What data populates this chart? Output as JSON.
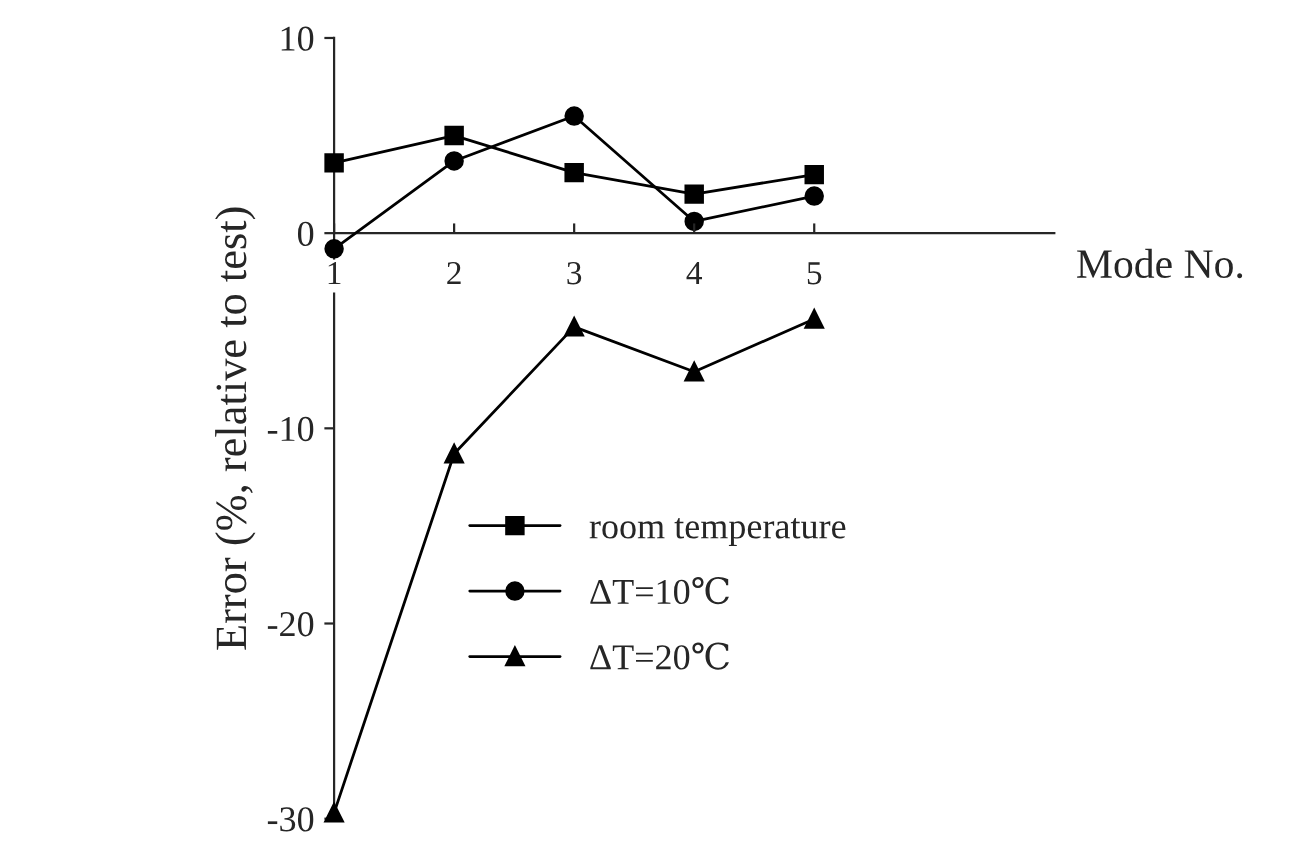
{
  "chart_data": {
    "type": "line",
    "xlabel": "Mode No.",
    "ylabel": "Error (%, relative to test)",
    "x": [
      1,
      2,
      3,
      4,
      5
    ],
    "series": [
      {
        "name": "room temperature",
        "color": "#000000",
        "marker": "square",
        "values": [
          3.6,
          5.0,
          3.1,
          2.0,
          3.0
        ]
      },
      {
        "name": "ΔT=10℃",
        "color": "#000000",
        "marker": "circle",
        "values": [
          -0.8,
          3.7,
          6.0,
          0.6,
          1.9
        ]
      },
      {
        "name": "ΔT=20℃",
        "color": "#000000",
        "marker": "triangle",
        "values": [
          -29.7,
          -11.3,
          -4.8,
          -7.1,
          -4.4
        ]
      }
    ],
    "xlim": [
      1,
      7
    ],
    "xticks": [
      1,
      2,
      3,
      4,
      5
    ],
    "ylim": [
      -30,
      10
    ],
    "yticks": [
      -30,
      -20,
      -10,
      0,
      10
    ],
    "grid": false,
    "legend": "bottom",
    "line_style": "solid"
  }
}
